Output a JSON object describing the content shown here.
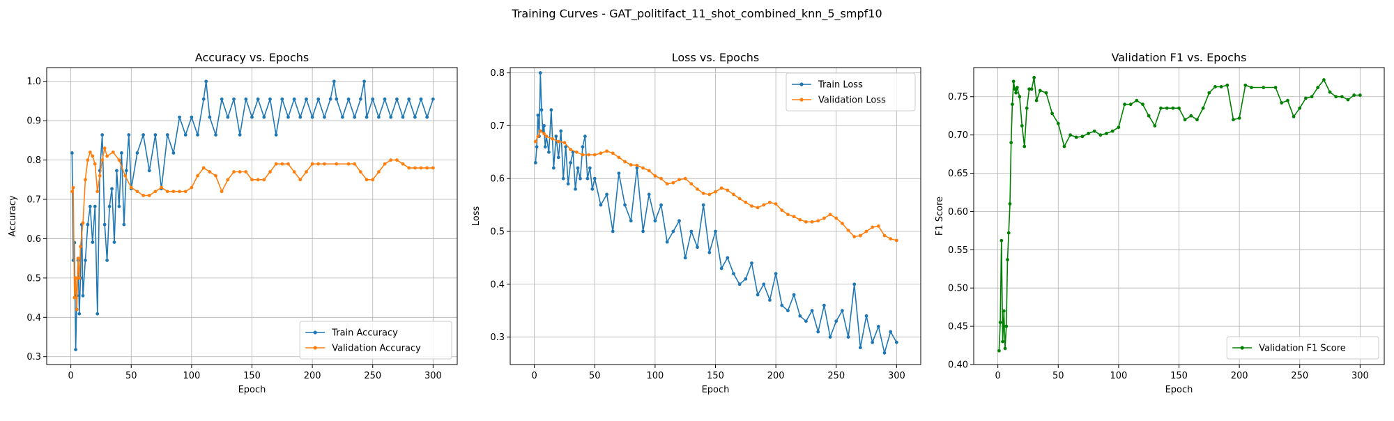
{
  "figure": {
    "suptitle": "Training Curves - GAT_politifact_11_shot_combined_knn_5_smpf10"
  },
  "colors": {
    "blue": "#1f77b4",
    "orange": "#ff7f0e",
    "green": "#008000",
    "grid": "#b0b0b0"
  },
  "chart_data": [
    {
      "type": "line",
      "title": "Accuracy vs. Epochs",
      "xlabel": "Epoch",
      "ylabel": "Accuracy",
      "xlim": [
        -20,
        320
      ],
      "ylim": [
        0.28,
        1.035
      ],
      "xticks": [
        0,
        50,
        100,
        150,
        200,
        250,
        300
      ],
      "yticks": [
        0.3,
        0.4,
        0.5,
        0.6,
        0.7,
        0.8,
        0.9,
        1.0
      ],
      "ytick_labels": [
        "0.3",
        "0.4",
        "0.5",
        "0.6",
        "0.7",
        "0.8",
        "0.9",
        "1.0"
      ],
      "grid": true,
      "legend_position": "lower-right",
      "series": [
        {
          "name": "Train Accuracy",
          "color": "#1f77b4",
          "x": [
            1,
            2,
            3,
            4,
            5,
            6,
            7,
            8,
            9,
            10,
            12,
            14,
            16,
            18,
            20,
            22,
            24,
            26,
            28,
            30,
            32,
            34,
            36,
            38,
            40,
            42,
            44,
            46,
            48,
            50,
            55,
            60,
            65,
            70,
            75,
            80,
            85,
            90,
            95,
            100,
            105,
            110,
            112,
            115,
            120,
            125,
            130,
            135,
            140,
            145,
            150,
            155,
            160,
            165,
            170,
            175,
            180,
            185,
            190,
            195,
            200,
            205,
            210,
            215,
            218,
            220,
            225,
            230,
            235,
            240,
            243,
            245,
            250,
            255,
            260,
            265,
            270,
            275,
            280,
            285,
            290,
            295,
            300
          ],
          "y": [
            0.818,
            0.545,
            0.59,
            0.318,
            0.455,
            0.545,
            0.409,
            0.5,
            0.636,
            0.455,
            0.545,
            0.636,
            0.682,
            0.591,
            0.682,
            0.409,
            0.773,
            0.864,
            0.636,
            0.545,
            0.682,
            0.727,
            0.591,
            0.773,
            0.682,
            0.818,
            0.636,
            0.773,
            0.864,
            0.727,
            0.818,
            0.864,
            0.773,
            0.864,
            0.727,
            0.864,
            0.818,
            0.909,
            0.864,
            0.909,
            0.864,
            0.955,
            1.0,
            0.909,
            0.864,
            0.955,
            0.909,
            0.955,
            0.864,
            0.955,
            0.909,
            0.955,
            0.909,
            0.955,
            0.864,
            0.955,
            0.909,
            0.955,
            0.909,
            0.955,
            0.909,
            0.955,
            0.909,
            0.955,
            1.0,
            0.955,
            0.909,
            0.955,
            0.909,
            0.955,
            1.0,
            0.909,
            0.955,
            0.909,
            0.955,
            0.909,
            0.955,
            0.909,
            0.955,
            0.909,
            0.955,
            0.909,
            0.955
          ]
        },
        {
          "name": "Validation Accuracy",
          "color": "#ff7f0e",
          "x": [
            1,
            2,
            3,
            4,
            5,
            6,
            7,
            8,
            10,
            12,
            14,
            16,
            18,
            20,
            22,
            24,
            26,
            28,
            30,
            35,
            40,
            45,
            50,
            55,
            60,
            65,
            70,
            75,
            80,
            85,
            90,
            95,
            100,
            105,
            110,
            115,
            120,
            125,
            130,
            135,
            140,
            145,
            150,
            155,
            160,
            165,
            170,
            175,
            180,
            185,
            190,
            195,
            200,
            205,
            210,
            220,
            230,
            235,
            240,
            245,
            250,
            255,
            260,
            265,
            270,
            275,
            280,
            285,
            290,
            295,
            300
          ],
          "y": [
            0.72,
            0.73,
            0.45,
            0.5,
            0.42,
            0.55,
            0.5,
            0.58,
            0.64,
            0.75,
            0.8,
            0.82,
            0.81,
            0.79,
            0.72,
            0.76,
            0.8,
            0.83,
            0.81,
            0.82,
            0.8,
            0.76,
            0.73,
            0.72,
            0.71,
            0.71,
            0.72,
            0.73,
            0.72,
            0.72,
            0.72,
            0.72,
            0.73,
            0.76,
            0.78,
            0.77,
            0.76,
            0.72,
            0.75,
            0.77,
            0.77,
            0.77,
            0.75,
            0.75,
            0.75,
            0.77,
            0.79,
            0.79,
            0.79,
            0.77,
            0.75,
            0.77,
            0.79,
            0.79,
            0.79,
            0.79,
            0.79,
            0.79,
            0.77,
            0.75,
            0.75,
            0.77,
            0.79,
            0.8,
            0.8,
            0.79,
            0.78,
            0.78,
            0.78,
            0.78,
            0.78
          ]
        }
      ]
    },
    {
      "type": "line",
      "title": "Loss vs. Epochs",
      "xlabel": "Epoch",
      "ylabel": "Loss",
      "xlim": [
        -20,
        320
      ],
      "ylim": [
        0.248,
        0.81
      ],
      "xticks": [
        0,
        50,
        100,
        150,
        200,
        250,
        300
      ],
      "yticks": [
        0.3,
        0.4,
        0.5,
        0.6,
        0.7,
        0.8
      ],
      "ytick_labels": [
        "0.3",
        "0.4",
        "0.5",
        "0.6",
        "0.7",
        "0.8"
      ],
      "grid": true,
      "legend_position": "upper-right",
      "series": [
        {
          "name": "Train Loss",
          "color": "#1f77b4",
          "x": [
            1,
            2,
            3,
            4,
            5,
            6,
            7,
            8,
            9,
            10,
            12,
            14,
            16,
            18,
            20,
            22,
            24,
            26,
            28,
            30,
            32,
            34,
            36,
            38,
            40,
            42,
            44,
            46,
            48,
            50,
            55,
            60,
            65,
            70,
            75,
            80,
            85,
            90,
            95,
            100,
            105,
            110,
            115,
            120,
            125,
            130,
            135,
            140,
            145,
            150,
            155,
            160,
            165,
            170,
            175,
            180,
            185,
            190,
            195,
            200,
            205,
            210,
            215,
            220,
            225,
            230,
            235,
            240,
            245,
            250,
            255,
            260,
            265,
            270,
            275,
            280,
            285,
            290,
            295,
            300
          ],
          "y": [
            0.63,
            0.66,
            0.72,
            0.68,
            0.8,
            0.73,
            0.69,
            0.7,
            0.66,
            0.68,
            0.65,
            0.73,
            0.62,
            0.68,
            0.64,
            0.69,
            0.6,
            0.66,
            0.59,
            0.63,
            0.65,
            0.58,
            0.62,
            0.6,
            0.66,
            0.68,
            0.6,
            0.62,
            0.58,
            0.6,
            0.55,
            0.57,
            0.5,
            0.61,
            0.55,
            0.52,
            0.62,
            0.5,
            0.57,
            0.52,
            0.55,
            0.48,
            0.5,
            0.52,
            0.45,
            0.5,
            0.47,
            0.55,
            0.46,
            0.5,
            0.43,
            0.45,
            0.42,
            0.4,
            0.41,
            0.44,
            0.38,
            0.4,
            0.37,
            0.42,
            0.36,
            0.35,
            0.38,
            0.34,
            0.33,
            0.35,
            0.31,
            0.36,
            0.3,
            0.33,
            0.35,
            0.3,
            0.4,
            0.28,
            0.34,
            0.29,
            0.32,
            0.27,
            0.31,
            0.29
          ]
        },
        {
          "name": "Validation Loss",
          "color": "#ff7f0e",
          "x": [
            1,
            3,
            5,
            8,
            10,
            15,
            20,
            25,
            30,
            35,
            40,
            45,
            50,
            55,
            60,
            65,
            70,
            75,
            80,
            85,
            90,
            95,
            100,
            105,
            110,
            115,
            120,
            125,
            130,
            135,
            140,
            145,
            150,
            155,
            160,
            165,
            170,
            175,
            180,
            185,
            190,
            195,
            200,
            205,
            210,
            215,
            220,
            225,
            230,
            235,
            240,
            245,
            250,
            255,
            260,
            265,
            270,
            275,
            280,
            285,
            290,
            295,
            300
          ],
          "y": [
            0.67,
            0.68,
            0.69,
            0.685,
            0.68,
            0.675,
            0.67,
            0.668,
            0.655,
            0.65,
            0.645,
            0.645,
            0.645,
            0.648,
            0.652,
            0.648,
            0.64,
            0.632,
            0.626,
            0.625,
            0.62,
            0.615,
            0.605,
            0.6,
            0.59,
            0.592,
            0.598,
            0.6,
            0.59,
            0.58,
            0.572,
            0.57,
            0.575,
            0.582,
            0.578,
            0.57,
            0.562,
            0.555,
            0.548,
            0.545,
            0.55,
            0.555,
            0.552,
            0.54,
            0.532,
            0.528,
            0.522,
            0.518,
            0.518,
            0.52,
            0.525,
            0.532,
            0.525,
            0.515,
            0.502,
            0.49,
            0.492,
            0.5,
            0.508,
            0.51,
            0.492,
            0.486,
            0.483
          ]
        }
      ]
    },
    {
      "type": "line",
      "title": "Validation F1 vs. Epochs",
      "xlabel": "Epoch",
      "ylabel": "F1 Score",
      "xlim": [
        -20,
        320
      ],
      "ylim": [
        0.4,
        0.788
      ],
      "xticks": [
        0,
        50,
        100,
        150,
        200,
        250,
        300
      ],
      "yticks": [
        0.4,
        0.45,
        0.5,
        0.55,
        0.6,
        0.65,
        0.7,
        0.75
      ],
      "ytick_labels": [
        "0.40",
        "0.45",
        "0.50",
        "0.55",
        "0.60",
        "0.65",
        "0.70",
        "0.75"
      ],
      "grid": true,
      "legend_position": "lower-right",
      "series": [
        {
          "name": "Validation F1 Score",
          "color": "#008000",
          "x": [
            1,
            2,
            3,
            4,
            5,
            6,
            7,
            8,
            9,
            10,
            11,
            12,
            13,
            14,
            15,
            16,
            18,
            20,
            22,
            24,
            26,
            28,
            30,
            32,
            35,
            40,
            45,
            50,
            55,
            60,
            65,
            70,
            75,
            80,
            85,
            90,
            95,
            100,
            105,
            110,
            115,
            120,
            125,
            130,
            135,
            140,
            145,
            150,
            155,
            160,
            165,
            170,
            175,
            180,
            185,
            190,
            195,
            200,
            205,
            210,
            220,
            230,
            235,
            240,
            245,
            250,
            255,
            260,
            265,
            270,
            275,
            280,
            285,
            290,
            295,
            300
          ],
          "y": [
            0.418,
            0.455,
            0.562,
            0.43,
            0.47,
            0.421,
            0.45,
            0.537,
            0.572,
            0.61,
            0.69,
            0.74,
            0.77,
            0.76,
            0.755,
            0.762,
            0.75,
            0.712,
            0.685,
            0.735,
            0.76,
            0.76,
            0.775,
            0.745,
            0.758,
            0.755,
            0.728,
            0.715,
            0.685,
            0.7,
            0.697,
            0.698,
            0.702,
            0.705,
            0.7,
            0.702,
            0.705,
            0.71,
            0.74,
            0.74,
            0.745,
            0.74,
            0.725,
            0.712,
            0.735,
            0.735,
            0.735,
            0.735,
            0.72,
            0.725,
            0.72,
            0.735,
            0.755,
            0.763,
            0.763,
            0.765,
            0.72,
            0.722,
            0.765,
            0.762,
            0.762,
            0.762,
            0.742,
            0.745,
            0.724,
            0.735,
            0.748,
            0.75,
            0.762,
            0.772,
            0.756,
            0.75,
            0.75,
            0.746,
            0.752,
            0.752
          ]
        }
      ]
    }
  ]
}
